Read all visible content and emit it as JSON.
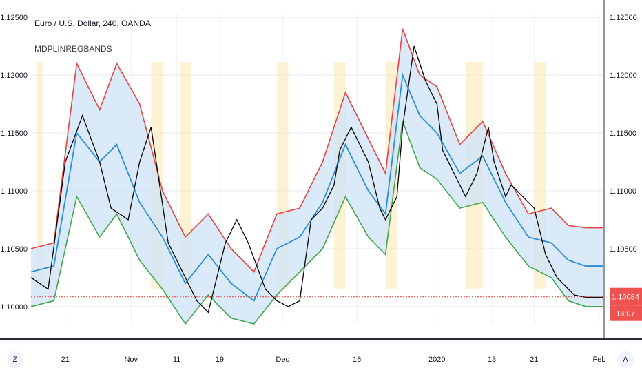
{
  "header": {
    "title": "Euro / U.S. Dollar, 240, OANDA",
    "indicator": "MDPLINREGBANDS"
  },
  "corner_buttons": {
    "left": "Z",
    "right": "A"
  },
  "chart_data": {
    "type": "line",
    "instrument": "Euro / U.S. Dollar",
    "interval": "240",
    "source": "OANDA",
    "y_ticks": [
      "1.12500",
      "1.12000",
      "1.11500",
      "1.11000",
      "1.10500",
      "1.10000"
    ],
    "x_ticks": [
      "21",
      "Nov",
      "11",
      "19",
      "Dec",
      "16",
      "2020",
      "13",
      "21",
      "Feb"
    ],
    "ylim": [
      1.0985,
      1.1253
    ],
    "grid": true,
    "last_price_label": "1.10084",
    "countdown_label": "16:07",
    "last_price": 1.10084,
    "colors": {
      "price": "#000000",
      "upper_band": "#e8413f",
      "lower_band": "#3fa64a",
      "middle_line": "#2a8fd6",
      "band_fill": "#cfe3f7",
      "highlight_fill": "#fbe9b8",
      "last_price_line": "#e53935"
    },
    "series": [
      {
        "name": "price",
        "x": [
          0,
          0.03,
          0.06,
          0.09,
          0.12,
          0.14,
          0.17,
          0.19,
          0.21,
          0.24,
          0.27,
          0.29,
          0.31,
          0.34,
          0.36,
          0.38,
          0.41,
          0.43,
          0.45,
          0.47,
          0.49,
          0.51,
          0.53,
          0.54,
          0.56,
          0.59,
          0.61,
          0.62,
          0.64,
          0.65,
          0.67,
          0.69,
          0.71,
          0.72,
          0.74,
          0.76,
          0.78,
          0.79,
          0.8,
          0.81,
          0.83,
          0.84,
          0.86,
          0.88,
          0.9,
          0.92,
          0.94,
          0.95,
          0.97,
          1.0
        ],
        "values": [
          1.1025,
          1.1015,
          1.1125,
          1.1165,
          1.1125,
          1.1085,
          1.1075,
          1.1125,
          1.1155,
          1.1055,
          1.1025,
          1.1005,
          1.0995,
          1.1055,
          1.1075,
          1.1055,
          1.1015,
          1.1005,
          1.1,
          1.1005,
          1.1075,
          1.1085,
          1.1105,
          1.1135,
          1.1155,
          1.1125,
          1.1085,
          1.1075,
          1.1095,
          1.1155,
          1.1225,
          1.1195,
          1.1175,
          1.1135,
          1.1115,
          1.1095,
          1.1115,
          1.1135,
          1.1155,
          1.1125,
          1.1095,
          1.1105,
          1.1095,
          1.1085,
          1.1045,
          1.1025,
          1.1015,
          1.101,
          1.1008,
          1.1008
        ]
      },
      {
        "name": "upper band",
        "x": [
          0,
          0.04,
          0.08,
          0.12,
          0.15,
          0.19,
          0.23,
          0.27,
          0.31,
          0.35,
          0.39,
          0.43,
          0.47,
          0.51,
          0.55,
          0.59,
          0.62,
          0.65,
          0.68,
          0.71,
          0.75,
          0.79,
          0.83,
          0.87,
          0.91,
          0.94,
          0.97,
          1.0
        ],
        "values": [
          1.105,
          1.1055,
          1.121,
          1.117,
          1.121,
          1.1175,
          1.11,
          1.106,
          1.108,
          1.105,
          1.103,
          1.108,
          1.1085,
          1.1125,
          1.1185,
          1.1145,
          1.1115,
          1.124,
          1.12,
          1.119,
          1.114,
          1.116,
          1.1115,
          1.108,
          1.1085,
          1.107,
          1.1068,
          1.1068
        ]
      },
      {
        "name": "middle",
        "x": [
          0,
          0.04,
          0.08,
          0.12,
          0.15,
          0.19,
          0.23,
          0.27,
          0.31,
          0.35,
          0.39,
          0.43,
          0.47,
          0.51,
          0.55,
          0.59,
          0.62,
          0.65,
          0.68,
          0.71,
          0.75,
          0.79,
          0.83,
          0.87,
          0.91,
          0.94,
          0.97,
          1.0
        ],
        "values": [
          1.103,
          1.1035,
          1.115,
          1.1125,
          1.114,
          1.109,
          1.106,
          1.102,
          1.1045,
          1.102,
          1.1005,
          1.105,
          1.106,
          1.109,
          1.114,
          1.11,
          1.108,
          1.12,
          1.1165,
          1.115,
          1.1115,
          1.113,
          1.109,
          1.106,
          1.1055,
          1.104,
          1.1035,
          1.1035
        ]
      },
      {
        "name": "lower band",
        "x": [
          0,
          0.04,
          0.08,
          0.12,
          0.15,
          0.19,
          0.23,
          0.27,
          0.31,
          0.35,
          0.39,
          0.43,
          0.47,
          0.51,
          0.55,
          0.59,
          0.62,
          0.65,
          0.68,
          0.71,
          0.75,
          0.79,
          0.83,
          0.87,
          0.91,
          0.94,
          0.97,
          1.0
        ],
        "values": [
          1.1,
          1.1005,
          1.1095,
          1.106,
          1.108,
          1.104,
          1.1015,
          1.0985,
          1.101,
          1.099,
          1.0985,
          1.101,
          1.103,
          1.105,
          1.1095,
          1.106,
          1.1045,
          1.116,
          1.112,
          1.111,
          1.1085,
          1.109,
          1.106,
          1.1035,
          1.1025,
          1.1005,
          1.1,
          1.1
        ]
      }
    ]
  }
}
